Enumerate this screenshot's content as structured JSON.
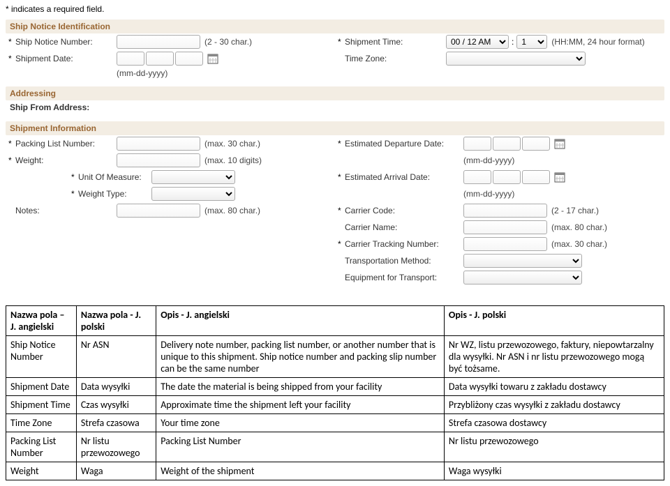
{
  "notes": {
    "required_field": "* indicates a required field."
  },
  "sections": {
    "ship_notice_id": "Ship Notice Identification",
    "addressing": "Addressing",
    "ship_from": "Ship From Address:",
    "shipment_info": "Shipment Information"
  },
  "fields": {
    "ship_notice_number": {
      "label": "Ship Notice Number:",
      "hint": "(2 - 30 char.)"
    },
    "shipment_date": {
      "label": "Shipment Date:",
      "hint": "(mm-dd-yyyy)"
    },
    "shipment_time": {
      "label": "Shipment Time:",
      "hour": "00 / 12 AM",
      "minute": "1",
      "hint": "(HH:MM, 24 hour format)"
    },
    "time_zone": {
      "label": "Time Zone:"
    },
    "packing_list_number": {
      "label": "Packing List Number:",
      "hint": "(max. 30 char.)"
    },
    "weight": {
      "label": "Weight:",
      "hint": "(max. 10 digits)"
    },
    "unit_of_measure": {
      "label": "Unit Of Measure:"
    },
    "weight_type": {
      "label": "Weight Type:"
    },
    "notes_field": {
      "label": "Notes:",
      "hint": "(max. 80 char.)"
    },
    "est_departure": {
      "label": "Estimated Departure Date:",
      "hint": "(mm-dd-yyyy)"
    },
    "est_arrival": {
      "label": "Estimated Arrival Date:",
      "hint": "(mm-dd-yyyy)"
    },
    "carrier_code": {
      "label": "Carrier Code:",
      "hint": "(2 - 17 char.)"
    },
    "carrier_name": {
      "label": "Carrier Name:",
      "hint": "(max. 80 char.)"
    },
    "carrier_tracking": {
      "label": "Carrier Tracking Number:",
      "hint": "(max. 30 char.)"
    },
    "transport_method": {
      "label": "Transportation Method:"
    },
    "equipment": {
      "label": "Equipment for Transport:"
    }
  },
  "colon": ":",
  "table": {
    "headers": [
      "Nazwa pola – J. angielski",
      "Nazwa pola - J. polski",
      "Opis - J. angielski",
      "Opis - J. polski"
    ],
    "rows": [
      [
        "Ship Notice Number",
        "Nr ASN",
        "Delivery note number, packing list number, or another number that is unique to this shipment. Ship notice number and packing slip number can be the same number",
        "Nr WZ, listu przewozowego, faktury, niepowtarzalny dla wysyłki. Nr ASN i nr listu przewozowego mogą być tożsame."
      ],
      [
        "Shipment Date",
        "Data wysyłki",
        "The date the material is being shipped from your facility",
        "Data wysyłki towaru z zakładu dostawcy"
      ],
      [
        "Shipment Time",
        "Czas wysyłki",
        "Approximate time the shipment left your facility",
        "Przybliżony czas wysyłki z zakładu dostawcy"
      ],
      [
        "Time Zone",
        "Strefa czasowa",
        "Your time zone",
        "Strefa czasowa dostawcy"
      ],
      [
        "Packing List Number",
        "Nr listu przewozowego",
        "Packing List Number",
        "Nr listu przewozowego"
      ],
      [
        "Weight",
        "Waga",
        "Weight of the shipment",
        "Waga wysyłki"
      ]
    ]
  }
}
